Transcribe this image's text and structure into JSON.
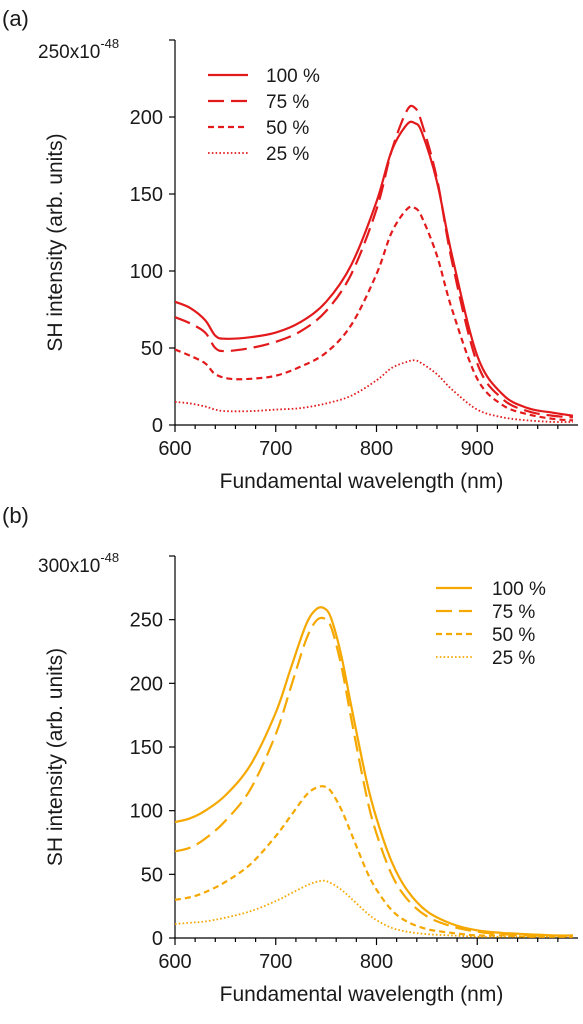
{
  "panels": [
    {
      "panel_label": "(a)",
      "y_top_label": "250x10",
      "y_exponent": "-48"
    },
    {
      "panel_label": "(b)",
      "y_top_label": "300x10",
      "y_exponent": "-48"
    }
  ],
  "chart_data": [
    {
      "type": "line",
      "panel_label": "(a)",
      "title": "",
      "xlabel": "Fundamental wavelength (nm)",
      "ylabel": "SH intensity (arb. units)",
      "xlim": [
        600,
        1000
      ],
      "ylim": [
        0,
        250
      ],
      "y_multiplier": "x10^-48",
      "xticks": [
        600,
        700,
        800,
        900
      ],
      "yticks": [
        0,
        50,
        100,
        150,
        200,
        250
      ],
      "color": "#e31a1c",
      "legend_position": "top-left",
      "grid": false,
      "series": [
        {
          "name": "100 %",
          "dash": "solid",
          "x": [
            600,
            615,
            630,
            640,
            650,
            675,
            700,
            725,
            750,
            775,
            800,
            815,
            830,
            838,
            845,
            860,
            875,
            900,
            925,
            950,
            975,
            995
          ],
          "y": [
            80,
            76,
            68,
            58,
            56,
            57,
            60,
            67,
            80,
            104,
            145,
            178,
            195,
            196,
            190,
            158,
            110,
            45,
            20,
            11,
            8,
            6
          ]
        },
        {
          "name": "75 %",
          "dash": "long-dash",
          "x": [
            600,
            615,
            630,
            640,
            650,
            675,
            700,
            725,
            750,
            775,
            800,
            815,
            830,
            838,
            845,
            860,
            875,
            900,
            925,
            950,
            975,
            995
          ],
          "y": [
            70,
            66,
            60,
            50,
            48,
            50,
            54,
            61,
            74,
            98,
            140,
            178,
            204,
            206,
            196,
            160,
            106,
            40,
            17,
            9,
            6,
            5
          ]
        },
        {
          "name": "50 %",
          "dash": "short-dash",
          "x": [
            600,
            615,
            630,
            640,
            655,
            675,
            700,
            725,
            750,
            775,
            800,
            815,
            830,
            838,
            845,
            860,
            875,
            900,
            925,
            950,
            975,
            995
          ],
          "y": [
            49,
            45,
            40,
            33,
            30,
            30,
            32,
            38,
            47,
            65,
            98,
            125,
            140,
            141,
            135,
            110,
            75,
            30,
            13,
            7,
            4,
            3
          ]
        },
        {
          "name": "25 %",
          "dash": "dotted",
          "x": [
            600,
            615,
            630,
            640,
            650,
            675,
            700,
            725,
            750,
            775,
            800,
            815,
            830,
            838,
            845,
            860,
            875,
            900,
            925,
            950,
            975,
            995
          ],
          "y": [
            15,
            14,
            12,
            10,
            9,
            9,
            10,
            11,
            14,
            19,
            29,
            37,
            41,
            42,
            40,
            33,
            23,
            10,
            5,
            3,
            2,
            2
          ]
        }
      ]
    },
    {
      "type": "line",
      "panel_label": "(b)",
      "title": "",
      "xlabel": "Fundamental wavelength (nm)",
      "ylabel": "SH intensity (arb. units)",
      "xlim": [
        600,
        1000
      ],
      "ylim": [
        0,
        300
      ],
      "y_multiplier": "x10^-48",
      "xticks": [
        600,
        700,
        800,
        900
      ],
      "yticks": [
        0,
        50,
        100,
        150,
        200,
        250,
        300
      ],
      "color": "#f5a800",
      "legend_position": "top-right",
      "grid": false,
      "series": [
        {
          "name": "100 %",
          "dash": "solid",
          "x": [
            600,
            615,
            630,
            650,
            675,
            700,
            715,
            730,
            740,
            748,
            755,
            765,
            775,
            790,
            800,
            815,
            830,
            850,
            875,
            900,
            925,
            950,
            975,
            995
          ],
          "y": [
            91,
            94,
            100,
            112,
            136,
            177,
            212,
            246,
            258,
            259,
            251,
            222,
            182,
            124,
            94,
            60,
            38,
            21,
            11,
            6,
            4,
            3,
            2,
            2
          ]
        },
        {
          "name": "75 %",
          "dash": "long-dash",
          "x": [
            600,
            615,
            630,
            650,
            675,
            700,
            715,
            730,
            740,
            748,
            755,
            765,
            775,
            790,
            800,
            815,
            830,
            850,
            875,
            900,
            925,
            950,
            975,
            995
          ],
          "y": [
            68,
            71,
            78,
            92,
            117,
            160,
            197,
            234,
            249,
            251,
            244,
            214,
            172,
            112,
            82,
            50,
            31,
            17,
            9,
            5,
            3,
            2,
            2,
            2
          ]
        },
        {
          "name": "50 %",
          "dash": "short-dash",
          "x": [
            600,
            615,
            630,
            650,
            675,
            700,
            715,
            730,
            740,
            748,
            755,
            765,
            775,
            790,
            800,
            815,
            830,
            850,
            875,
            900,
            925,
            950,
            975,
            995
          ],
          "y": [
            30,
            32,
            36,
            44,
            58,
            80,
            96,
            112,
            118,
            119,
            115,
            101,
            82,
            53,
            38,
            22,
            13,
            7,
            4,
            2,
            2,
            1,
            1,
            1
          ]
        },
        {
          "name": "25 %",
          "dash": "dotted",
          "x": [
            600,
            615,
            630,
            650,
            675,
            700,
            715,
            730,
            740,
            748,
            755,
            765,
            775,
            790,
            800,
            815,
            830,
            850,
            875,
            900,
            925,
            950,
            975,
            995
          ],
          "y": [
            11,
            12,
            13,
            16,
            21,
            29,
            35,
            41,
            44,
            45,
            43,
            38,
            31,
            20,
            14,
            8,
            5,
            3,
            2,
            1,
            1,
            1,
            1,
            1
          ]
        }
      ]
    }
  ]
}
